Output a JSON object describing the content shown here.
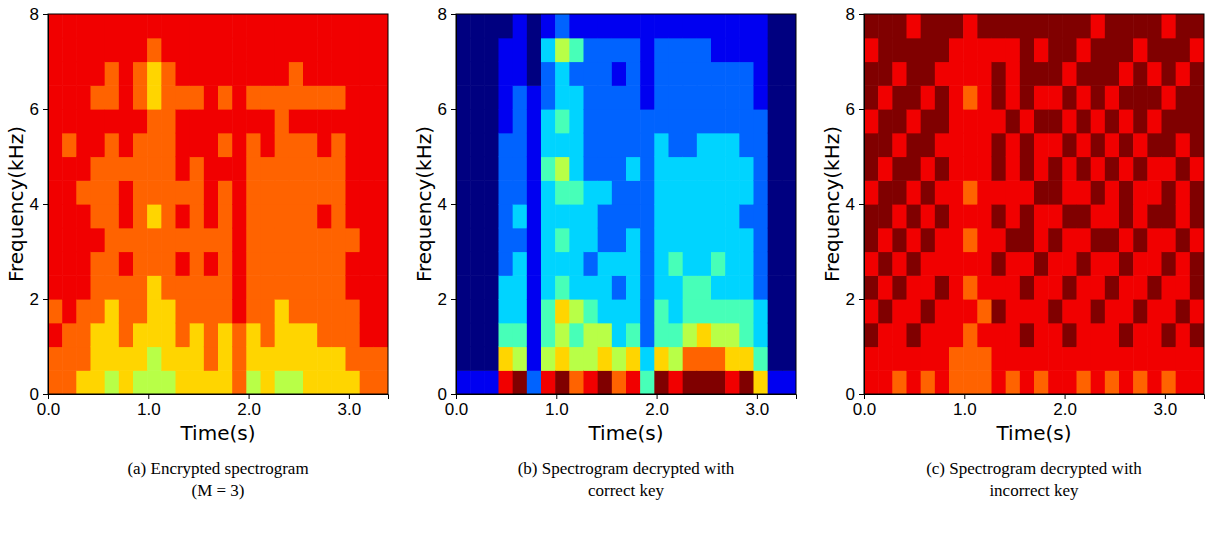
{
  "chart_data": [
    {
      "type": "heatmap",
      "title": [
        "(a) Encrypted spectrogram",
        "(M = 3)"
      ],
      "xlabel": "Time(s)",
      "ylabel": "Frequency(kHz)",
      "xlim": [
        0,
        3.39
      ],
      "xticks": [
        {
          "value": 0,
          "label": "0.0"
        },
        {
          "value": 1,
          "label": "1.0"
        },
        {
          "value": 2,
          "label": "2.0"
        },
        {
          "value": 3,
          "label": "3.0"
        }
      ],
      "ylim": [
        0,
        8
      ],
      "yticks": [
        0,
        2,
        4,
        6,
        8
      ],
      "zlim": [
        0,
        9
      ],
      "cells": [
        [
          7,
          7,
          8,
          7,
          8,
          8,
          8,
          8,
          8,
          8,
          8,
          8,
          8,
          8,
          8,
          8
        ],
        [
          7,
          7,
          7,
          8,
          8,
          8,
          8,
          8,
          8,
          8,
          7,
          8,
          8,
          8,
          8,
          8
        ],
        [
          6,
          7,
          7,
          7,
          8,
          8,
          8,
          8,
          7,
          8,
          8,
          8,
          8,
          8,
          8,
          8
        ],
        [
          6,
          6,
          6,
          7,
          7,
          7,
          8,
          7,
          7,
          7,
          8,
          8,
          7,
          8,
          8,
          8
        ],
        [
          5,
          6,
          6,
          6,
          7,
          7,
          7,
          7,
          7,
          7,
          7,
          8,
          7,
          7,
          8,
          8
        ],
        [
          6,
          6,
          7,
          7,
          7,
          8,
          7,
          8,
          8,
          7,
          8,
          8,
          8,
          8,
          8,
          8
        ],
        [
          5,
          6,
          6,
          7,
          7,
          7,
          7,
          7,
          7,
          7,
          7,
          8,
          7,
          7,
          8,
          8
        ],
        [
          5,
          5,
          6,
          6,
          6,
          7,
          7,
          6,
          7,
          7,
          7,
          7,
          6,
          6,
          7,
          8
        ],
        [
          5,
          6,
          6,
          6,
          7,
          7,
          7,
          7,
          7,
          7,
          7,
          7,
          7,
          7,
          8,
          8
        ],
        [
          6,
          6,
          7,
          7,
          7,
          8,
          7,
          8,
          7,
          8,
          8,
          8,
          7,
          8,
          8,
          8
        ],
        [
          6,
          6,
          6,
          7,
          7,
          7,
          7,
          7,
          7,
          7,
          8,
          8,
          7,
          8,
          8,
          8
        ],
        [
          6,
          7,
          7,
          7,
          7,
          8,
          7,
          8,
          8,
          8,
          8,
          8,
          8,
          8,
          8,
          8
        ],
        [
          6,
          6,
          6,
          7,
          7,
          7,
          7,
          7,
          7,
          8,
          7,
          8,
          7,
          8,
          8,
          8
        ],
        [
          7,
          7,
          7,
          8,
          8,
          8,
          8,
          8,
          8,
          8,
          8,
          8,
          8,
          8,
          8,
          8
        ],
        [
          5,
          6,
          6,
          7,
          7,
          7,
          7,
          7,
          7,
          7,
          7,
          8,
          7,
          8,
          8,
          8
        ],
        [
          6,
          6,
          7,
          7,
          7,
          7,
          7,
          7,
          7,
          7,
          8,
          8,
          7,
          8,
          8,
          8
        ],
        [
          5,
          6,
          6,
          6,
          7,
          7,
          7,
          7,
          7,
          7,
          7,
          7,
          7,
          8,
          8,
          8
        ],
        [
          5,
          6,
          6,
          7,
          7,
          7,
          7,
          7,
          7,
          7,
          7,
          8,
          7,
          7,
          8,
          8
        ],
        [
          6,
          6,
          6,
          7,
          7,
          7,
          7,
          7,
          7,
          7,
          7,
          8,
          7,
          8,
          8,
          8
        ],
        [
          6,
          6,
          7,
          7,
          7,
          7,
          7,
          8,
          7,
          7,
          8,
          8,
          7,
          8,
          8,
          8
        ],
        [
          6,
          6,
          7,
          7,
          7,
          7,
          7,
          7,
          7,
          7,
          7,
          8,
          7,
          8,
          8,
          8
        ],
        [
          6,
          7,
          7,
          7,
          8,
          8,
          7,
          8,
          8,
          8,
          8,
          8,
          8,
          8,
          8,
          8
        ],
        [
          7,
          7,
          8,
          8,
          8,
          8,
          8,
          8,
          8,
          8,
          8,
          8,
          8,
          8,
          8,
          8
        ],
        [
          7,
          7,
          8,
          8,
          8,
          8,
          8,
          8,
          8,
          8,
          8,
          8,
          8,
          8,
          8,
          8
        ]
      ]
    },
    {
      "type": "heatmap",
      "title": [
        "(b) Spectrogram decrypted with",
        "correct key"
      ],
      "xlabel": "Time(s)",
      "ylabel": "Frequency(kHz)",
      "xlim": [
        0,
        3.39
      ],
      "xticks": [
        {
          "value": 0,
          "label": "0.0"
        },
        {
          "value": 1,
          "label": "1.0"
        },
        {
          "value": 2,
          "label": "2.0"
        },
        {
          "value": 3,
          "label": "3.0"
        }
      ],
      "ylim": [
        0,
        8
      ],
      "yticks": [
        0,
        2,
        4,
        6,
        8
      ],
      "zlim": [
        0,
        9
      ],
      "cells": [
        [
          1,
          0,
          0,
          0,
          0,
          0,
          0,
          0,
          0,
          0,
          0,
          0,
          0,
          0,
          0,
          0
        ],
        [
          1,
          0,
          0,
          0,
          0,
          0,
          0,
          0,
          0,
          0,
          0,
          0,
          0,
          0,
          0,
          0
        ],
        [
          1,
          0,
          0,
          0,
          0,
          0,
          0,
          0,
          0,
          0,
          0,
          0,
          0,
          0,
          0,
          0
        ],
        [
          8,
          6,
          4,
          3,
          3,
          2,
          2,
          2,
          2,
          2,
          2,
          1,
          1,
          1,
          1,
          0
        ],
        [
          9,
          5,
          4,
          3,
          3,
          3,
          2,
          3,
          2,
          2,
          2,
          2,
          2,
          1,
          1,
          1
        ],
        [
          2,
          1,
          1,
          1,
          1,
          1,
          1,
          1,
          1,
          1,
          1,
          1,
          1,
          0,
          0,
          0
        ],
        [
          8,
          5,
          4,
          4,
          3,
          3,
          3,
          3,
          3,
          4,
          3,
          3,
          2,
          2,
          3,
          1
        ],
        [
          9,
          6,
          5,
          6,
          4,
          3,
          4,
          3,
          4,
          5,
          3,
          4,
          3,
          3,
          5,
          2
        ],
        [
          7,
          5,
          4,
          5,
          3,
          3,
          3,
          3,
          4,
          3,
          3,
          3,
          3,
          2,
          4,
          1
        ],
        [
          8,
          5,
          5,
          4,
          3,
          2,
          3,
          3,
          3,
          2,
          2,
          2,
          2,
          2,
          2,
          1
        ],
        [
          9,
          6,
          5,
          3,
          3,
          3,
          2,
          2,
          3,
          2,
          2,
          2,
          2,
          2,
          2,
          1
        ],
        [
          7,
          5,
          3,
          3,
          2,
          3,
          2,
          2,
          2,
          2,
          2,
          2,
          2,
          1,
          2,
          1
        ],
        [
          8,
          6,
          4,
          3,
          3,
          3,
          3,
          2,
          2,
          3,
          2,
          2,
          2,
          2,
          2,
          1
        ],
        [
          4,
          3,
          2,
          2,
          2,
          2,
          2,
          2,
          2,
          2,
          2,
          2,
          1,
          1,
          1,
          1
        ],
        [
          9,
          6,
          4,
          4,
          3,
          3,
          3,
          3,
          3,
          3,
          3,
          2,
          2,
          2,
          2,
          1
        ],
        [
          8,
          5,
          4,
          3,
          3,
          4,
          3,
          3,
          3,
          3,
          2,
          2,
          2,
          2,
          2,
          1
        ],
        [
          9,
          7,
          5,
          4,
          4,
          3,
          3,
          3,
          3,
          3,
          2,
          2,
          2,
          2,
          2,
          1
        ],
        [
          9,
          7,
          6,
          4,
          4,
          3,
          3,
          3,
          3,
          3,
          3,
          2,
          2,
          2,
          2,
          1
        ],
        [
          9,
          7,
          5,
          4,
          3,
          4,
          3,
          3,
          3,
          3,
          3,
          2,
          2,
          2,
          1,
          1
        ],
        [
          8,
          6,
          5,
          4,
          3,
          3,
          3,
          3,
          3,
          3,
          3,
          2,
          2,
          2,
          1,
          1
        ],
        [
          9,
          6,
          4,
          4,
          3,
          3,
          3,
          2,
          3,
          3,
          2,
          2,
          2,
          2,
          1,
          1
        ],
        [
          6,
          4,
          3,
          3,
          2,
          2,
          2,
          2,
          2,
          2,
          2,
          2,
          1,
          1,
          1,
          1
        ],
        [
          1,
          0,
          0,
          0,
          0,
          0,
          0,
          0,
          0,
          0,
          0,
          0,
          0,
          0,
          0,
          0
        ],
        [
          1,
          0,
          0,
          0,
          0,
          0,
          0,
          0,
          0,
          0,
          0,
          0,
          0,
          0,
          0,
          0
        ]
      ]
    },
    {
      "type": "heatmap",
      "title": [
        "(c) Spectrogram decrypted with",
        "incorrect key"
      ],
      "xlabel": "Time(s)",
      "ylabel": "Frequency(kHz)",
      "xlim": [
        0,
        3.39
      ],
      "xticks": [
        {
          "value": 0,
          "label": "0.0"
        },
        {
          "value": 1,
          "label": "1.0"
        },
        {
          "value": 2,
          "label": "2.0"
        },
        {
          "value": 3,
          "label": "3.0"
        }
      ],
      "ylim": [
        0,
        8
      ],
      "yticks": [
        0,
        2,
        4,
        6,
        8
      ],
      "zlim": [
        0,
        9
      ],
      "cells": [
        [
          8,
          8,
          9,
          8,
          9,
          8,
          9,
          9,
          8,
          9,
          9,
          8,
          9,
          9,
          8,
          9
        ],
        [
          8,
          8,
          8,
          9,
          8,
          9,
          8,
          9,
          9,
          8,
          9,
          9,
          8,
          9,
          9,
          9
        ],
        [
          7,
          8,
          8,
          8,
          9,
          8,
          9,
          8,
          9,
          9,
          8,
          9,
          9,
          8,
          9,
          9
        ],
        [
          8,
          8,
          9,
          8,
          8,
          9,
          8,
          9,
          8,
          9,
          9,
          8,
          9,
          9,
          9,
          8
        ],
        [
          7,
          8,
          8,
          9,
          8,
          8,
          9,
          8,
          9,
          8,
          9,
          9,
          8,
          9,
          9,
          9
        ],
        [
          8,
          8,
          8,
          8,
          9,
          8,
          8,
          9,
          8,
          9,
          8,
          9,
          9,
          8,
          9,
          9
        ],
        [
          7,
          7,
          8,
          8,
          8,
          8,
          8,
          8,
          8,
          8,
          8,
          8,
          8,
          8,
          8,
          9
        ],
        [
          7,
          7,
          7,
          8,
          7,
          8,
          7,
          8,
          7,
          8,
          8,
          8,
          7,
          8,
          8,
          8
        ],
        [
          7,
          7,
          8,
          7,
          8,
          8,
          8,
          8,
          8,
          8,
          8,
          8,
          8,
          8,
          8,
          9
        ],
        [
          8,
          8,
          8,
          9,
          8,
          9,
          8,
          9,
          8,
          9,
          9,
          8,
          9,
          9,
          8,
          9
        ],
        [
          7,
          8,
          8,
          8,
          8,
          8,
          9,
          8,
          8,
          8,
          8,
          9,
          8,
          8,
          8,
          9
        ],
        [
          8,
          8,
          9,
          8,
          9,
          8,
          9,
          9,
          8,
          9,
          9,
          8,
          9,
          9,
          9,
          9
        ],
        [
          7,
          8,
          8,
          8,
          8,
          9,
          8,
          8,
          9,
          8,
          8,
          9,
          8,
          9,
          8,
          9
        ],
        [
          8,
          8,
          8,
          9,
          8,
          8,
          9,
          8,
          9,
          9,
          8,
          9,
          8,
          9,
          9,
          9
        ],
        [
          8,
          8,
          9,
          8,
          9,
          8,
          8,
          9,
          8,
          8,
          9,
          8,
          9,
          8,
          9,
          9
        ],
        [
          7,
          8,
          8,
          8,
          8,
          9,
          8,
          9,
          8,
          9,
          8,
          9,
          8,
          9,
          8,
          9
        ],
        [
          8,
          8,
          8,
          9,
          8,
          8,
          9,
          8,
          9,
          8,
          9,
          8,
          9,
          9,
          9,
          8
        ],
        [
          7,
          8,
          8,
          8,
          9,
          8,
          9,
          8,
          8,
          9,
          8,
          9,
          8,
          9,
          9,
          9
        ],
        [
          8,
          8,
          9,
          8,
          8,
          9,
          8,
          9,
          9,
          8,
          9,
          8,
          9,
          8,
          9,
          9
        ],
        [
          7,
          8,
          8,
          9,
          8,
          8,
          9,
          8,
          8,
          9,
          8,
          9,
          9,
          9,
          8,
          9
        ],
        [
          8,
          8,
          8,
          8,
          9,
          8,
          8,
          9,
          8,
          8,
          9,
          8,
          9,
          8,
          9,
          9
        ],
        [
          7,
          8,
          9,
          8,
          8,
          9,
          8,
          9,
          9,
          8,
          9,
          9,
          8,
          9,
          9,
          8
        ],
        [
          8,
          8,
          8,
          9,
          8,
          8,
          9,
          8,
          8,
          9,
          8,
          9,
          9,
          8,
          9,
          9
        ],
        [
          8,
          8,
          9,
          8,
          9,
          9,
          8,
          9,
          9,
          8,
          9,
          9,
          9,
          9,
          8,
          9
        ]
      ]
    }
  ]
}
